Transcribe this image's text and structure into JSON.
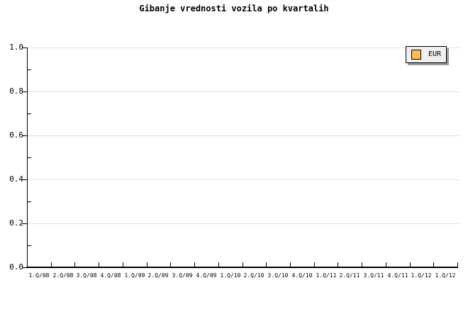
{
  "chart_data": {
    "type": "line",
    "title": "Gibanje vrednosti vozila po kvartalih",
    "categories": [
      "1.Q/08",
      "2.Q/08",
      "3.Q/08",
      "4.Q/08",
      "1.Q/09",
      "2.Q/09",
      "3.Q/09",
      "4.Q/09",
      "1.Q/10",
      "2.Q/10",
      "3.Q/10",
      "4.Q/10",
      "1.Q/11",
      "2.Q/11",
      "3.Q/11",
      "4.Q/11",
      "1.Q/12",
      "1.Q/12"
    ],
    "series": [
      {
        "name": "EUR",
        "color": "#fbbe5a",
        "values": []
      }
    ],
    "xlabel": "",
    "ylabel": "",
    "ylim": [
      0.0,
      1.0
    ],
    "y_tick_interval": 0.2,
    "grid": "horizontal-major",
    "legend_position": "top-right"
  },
  "axes": {
    "y_tick_labels": [
      "1.0",
      "0.8",
      "0.6",
      "0.4",
      "0.2",
      "0.0"
    ]
  },
  "legend": {
    "items": [
      {
        "label": "EUR",
        "swatch_color": "#fbbe5a"
      }
    ]
  },
  "colors": {
    "background": "#ffffff",
    "axis": "#000000",
    "gridline": "#e0e0e0",
    "text": "#000000",
    "legend_background": "#efefef",
    "legend_border": "#000000",
    "legend_shadow": "#999999"
  }
}
